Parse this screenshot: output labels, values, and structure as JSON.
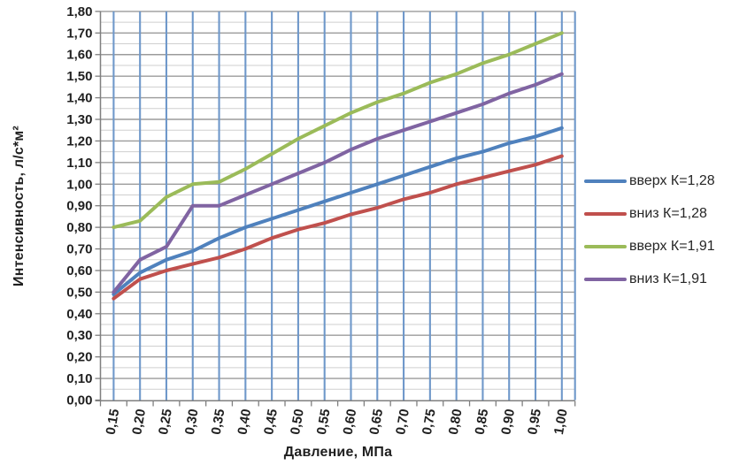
{
  "chart_data": {
    "type": "line",
    "title": "",
    "xlabel": "Давление, МПа",
    "ylabel": "Интенсивность, л/с*м²",
    "x_tick_labels": [
      "0,15",
      "0,20",
      "0,25",
      "0,30",
      "0,35",
      "0,40",
      "0,45",
      "0,50",
      "0,55",
      "0,60",
      "0,65",
      "0,70",
      "0,75",
      "0,80",
      "0,85",
      "0,90",
      "0,95",
      "1,00"
    ],
    "y_tick_labels": [
      "0,00",
      "0,10",
      "0,20",
      "0,30",
      "0,40",
      "0,50",
      "0,60",
      "0,70",
      "0,80",
      "0,90",
      "1,00",
      "1,10",
      "1,20",
      "1,30",
      "1,40",
      "1,50",
      "1,60",
      "1,70",
      "1,80"
    ],
    "x_values": [
      0.15,
      0.2,
      0.25,
      0.3,
      0.35,
      0.4,
      0.45,
      0.5,
      0.55,
      0.6,
      0.65,
      0.7,
      0.75,
      0.8,
      0.85,
      0.9,
      0.95,
      1.0
    ],
    "ylim": [
      0,
      1.8
    ],
    "y_major_step": 0.1,
    "y_minor_step": 0.05,
    "grid": {
      "vertical_color": "#6f98ca",
      "major_horizontal_color": "#9b9b9b",
      "minor_horizontal_color": "#cfcfcf",
      "axis_color": "#7f7f7f"
    },
    "legend_position": "right",
    "series": [
      {
        "name": "вверх К=1,28",
        "color": "#4F81BD",
        "values": [
          0.49,
          0.59,
          0.65,
          0.69,
          0.75,
          0.8,
          0.84,
          0.88,
          0.92,
          0.96,
          1.0,
          1.04,
          1.08,
          1.12,
          1.15,
          1.19,
          1.22,
          1.26
        ]
      },
      {
        "name": "вниз К=1,28",
        "color": "#C0504D",
        "values": [
          0.47,
          0.56,
          0.6,
          0.63,
          0.66,
          0.7,
          0.75,
          0.79,
          0.82,
          0.86,
          0.89,
          0.93,
          0.96,
          1.0,
          1.03,
          1.06,
          1.09,
          1.13
        ]
      },
      {
        "name": "вверх К=1,91",
        "color": "#9BBB59",
        "values": [
          0.8,
          0.83,
          0.94,
          1.0,
          1.01,
          1.07,
          1.14,
          1.21,
          1.27,
          1.33,
          1.38,
          1.42,
          1.47,
          1.51,
          1.56,
          1.6,
          1.65,
          1.7
        ]
      },
      {
        "name": "вниз К=1,91",
        "color": "#8064A2",
        "values": [
          0.5,
          0.65,
          0.71,
          0.9,
          0.9,
          0.95,
          1.0,
          1.05,
          1.1,
          1.16,
          1.21,
          1.25,
          1.29,
          1.33,
          1.37,
          1.42,
          1.46,
          1.51
        ]
      }
    ]
  }
}
